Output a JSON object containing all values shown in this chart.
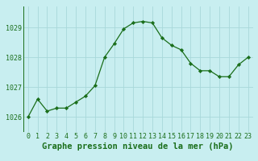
{
  "x": [
    0,
    1,
    2,
    3,
    4,
    5,
    6,
    7,
    8,
    9,
    10,
    11,
    12,
    13,
    14,
    15,
    16,
    17,
    18,
    19,
    20,
    21,
    22,
    23
  ],
  "y": [
    1026.0,
    1026.6,
    1026.2,
    1026.3,
    1026.3,
    1026.5,
    1026.7,
    1027.05,
    1028.0,
    1028.45,
    1028.95,
    1029.15,
    1029.2,
    1029.15,
    1028.65,
    1028.4,
    1028.25,
    1027.8,
    1027.55,
    1027.55,
    1027.35,
    1027.35,
    1027.75,
    1028.0
  ],
  "xlim": [
    -0.5,
    23.5
  ],
  "ylim": [
    1025.5,
    1029.7
  ],
  "yticks": [
    1026,
    1027,
    1028,
    1029
  ],
  "xticks": [
    0,
    1,
    2,
    3,
    4,
    5,
    6,
    7,
    8,
    9,
    10,
    11,
    12,
    13,
    14,
    15,
    16,
    17,
    18,
    19,
    20,
    21,
    22,
    23
  ],
  "xlabel": "Graphe pression niveau de la mer (hPa)",
  "line_color": "#1a6e1a",
  "marker_color": "#1a6e1a",
  "bg_color": "#c8eef0",
  "grid_color": "#a8d8da",
  "tick_color": "#1a6e1a",
  "label_color": "#1a6e1a",
  "xlabel_fontsize": 7.5,
  "tick_fontsize": 6.0
}
